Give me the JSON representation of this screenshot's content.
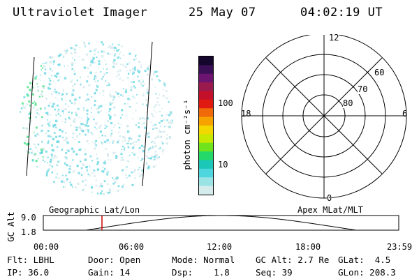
{
  "header": {
    "title": "Ultraviolet Imager",
    "date": "25 May 07",
    "time": "04:02:19 UT"
  },
  "colorbar": {
    "unit_label": "photon cm⁻²s⁻¹",
    "tick_labels": [
      "100",
      "10"
    ],
    "colors": [
      "#15062e",
      "#3a0f55",
      "#6d1470",
      "#9a1a4e",
      "#c4102a",
      "#e01a10",
      "#f06a0a",
      "#f6a300",
      "#f2d800",
      "#c7e800",
      "#6fe41c",
      "#24d86a",
      "#1bc8b8",
      "#4dd6dd",
      "#9be4e6",
      "#d6ecec"
    ]
  },
  "polar": {
    "mlt_labels": {
      "top": "12",
      "left": "18",
      "right": "6",
      "bottom": "0"
    },
    "lat_labels": [
      "60",
      "70",
      "80"
    ]
  },
  "timeline": {
    "left_label": "Geographic Lat/Lon",
    "right_label": "Apex MLat/MLT",
    "axis_title": "GC Alt",
    "y_ticks": [
      "9.0",
      "1.8"
    ],
    "x_ticks": [
      "00:00",
      "06:00",
      "12:00",
      "18:00",
      "23:59"
    ],
    "marker_color": "#cc0000"
  },
  "status": {
    "row1": [
      {
        "label": "Flt:",
        "value": "LBHL"
      },
      {
        "label": "Door:",
        "value": "Open"
      },
      {
        "label": "Mode:",
        "value": "Normal"
      },
      {
        "label": "GC Alt:",
        "value": "2.7 Re"
      },
      {
        "label": "GLat:",
        "value": "4.5"
      }
    ],
    "row2": [
      {
        "label": "IP:",
        "value": "36.0"
      },
      {
        "label": "Gain:",
        "value": "14"
      },
      {
        "label": "Dsp:",
        "value": "1.8"
      },
      {
        "label": "Seq:",
        "value": "39"
      },
      {
        "label": "GLon:",
        "value": "208.3"
      }
    ]
  }
}
